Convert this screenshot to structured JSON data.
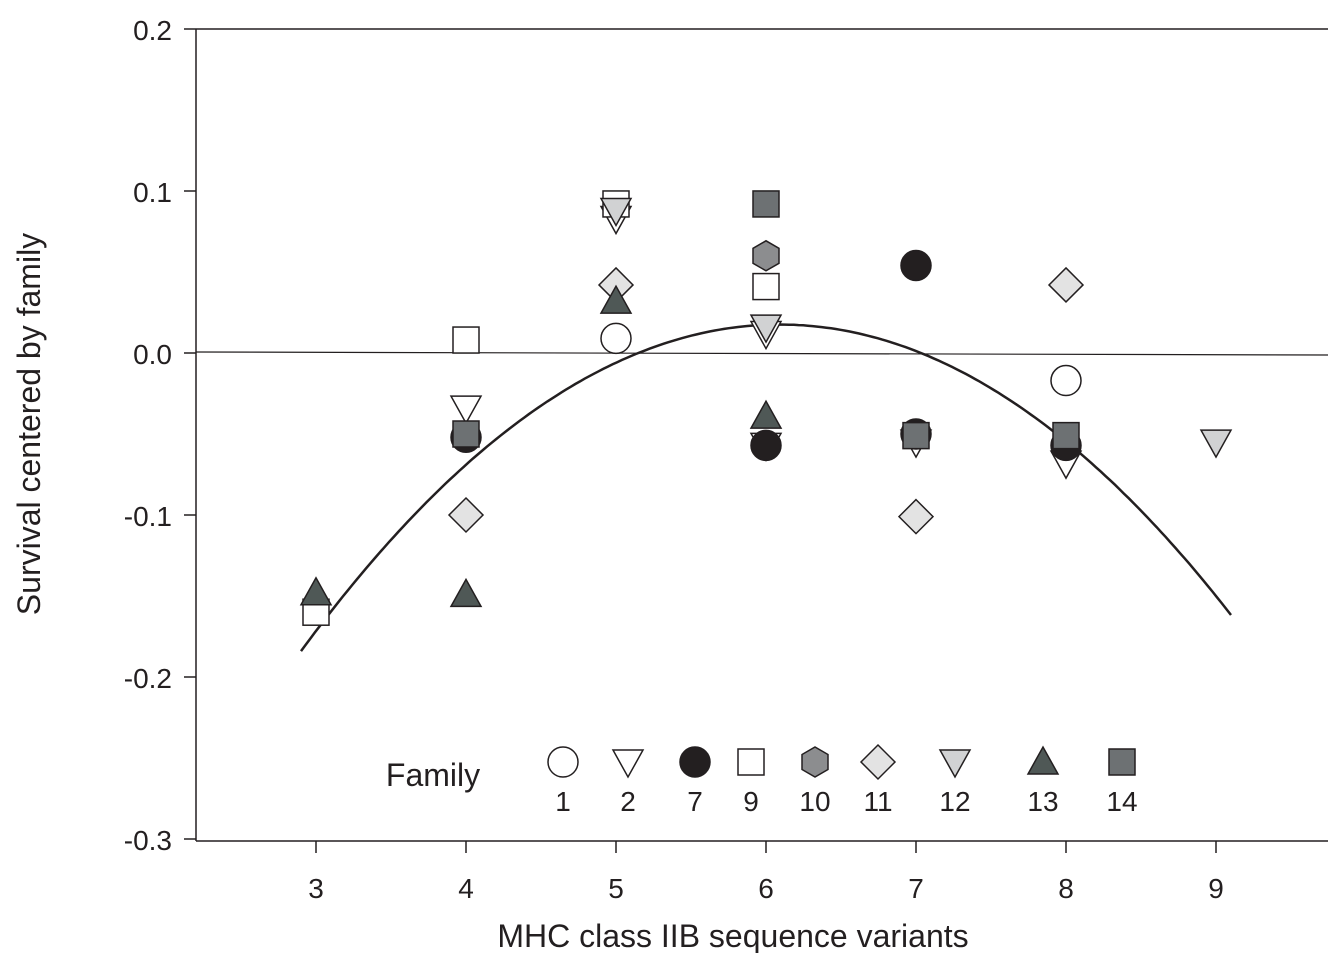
{
  "chart_data": {
    "type": "scatter",
    "title": "",
    "xlabel": "MHC class IIB sequence variants",
    "ylabel": "Survival centered by family",
    "xlim": [
      2.2,
      9.75
    ],
    "ylim": [
      -0.3,
      0.2
    ],
    "x_ticks": [
      3,
      4,
      5,
      6,
      7,
      8,
      9
    ],
    "y_ticks": [
      0.2,
      0.1,
      0.0,
      -0.1,
      -0.2,
      -0.3
    ],
    "y_tick_labels": [
      "0.2",
      "0.1",
      "0.0",
      "-0.1",
      "-0.2",
      "-0.3"
    ],
    "reference_line_y": 0.0,
    "grid": false,
    "legend": {
      "title": "Family",
      "placement": "bottom-center"
    },
    "series": [
      {
        "name": "1",
        "marker": "circle",
        "fill": "#ffffff",
        "points": [
          [
            5,
            0.009
          ],
          [
            8,
            -0.017
          ]
        ]
      },
      {
        "name": "2",
        "marker": "triangle-down",
        "fill": "#ffffff",
        "points": [
          [
            4,
            -0.034
          ],
          [
            5,
            0.083
          ],
          [
            6,
            0.012
          ],
          [
            6,
            -0.057
          ],
          [
            7,
            -0.055
          ],
          [
            8,
            -0.068
          ]
        ]
      },
      {
        "name": "7",
        "marker": "circle",
        "fill": "#231f20",
        "points": [
          [
            4,
            -0.052
          ],
          [
            6,
            -0.057
          ],
          [
            7,
            0.054
          ],
          [
            7,
            -0.05
          ],
          [
            8,
            -0.057
          ]
        ]
      },
      {
        "name": "9",
        "marker": "square",
        "fill": "#ffffff",
        "points": [
          [
            3,
            -0.16
          ],
          [
            4,
            0.008
          ],
          [
            5,
            0.092
          ],
          [
            6,
            0.041
          ]
        ]
      },
      {
        "name": "10",
        "marker": "hexagon",
        "fill": "#8c8d8f",
        "points": [
          [
            6,
            0.06
          ]
        ]
      },
      {
        "name": "11",
        "marker": "diamond",
        "fill": "#e3e3e3",
        "points": [
          [
            4,
            -0.1
          ],
          [
            5,
            0.042
          ],
          [
            7,
            -0.101
          ],
          [
            8,
            0.042
          ]
        ]
      },
      {
        "name": "12",
        "marker": "triangle-down",
        "fill": "#d1d2d3",
        "points": [
          [
            5,
            0.088
          ],
          [
            6,
            0.016
          ],
          [
            9,
            -0.055
          ]
        ]
      },
      {
        "name": "13",
        "marker": "triangle-up",
        "fill": "#4f5856",
        "points": [
          [
            3,
            -0.148
          ],
          [
            4,
            -0.149
          ],
          [
            5,
            0.032
          ],
          [
            6,
            -0.039
          ]
        ]
      },
      {
        "name": "14",
        "marker": "square",
        "fill": "#6d7173",
        "points": [
          [
            4,
            -0.05
          ],
          [
            6,
            0.092
          ],
          [
            7,
            -0.051
          ],
          [
            8,
            -0.051
          ]
        ]
      }
    ],
    "fit_curve": {
      "type": "quadratic",
      "coefficients": [
        -0.0198,
        0.2412,
        -0.717
      ],
      "x_range": [
        2.9,
        9.1
      ]
    }
  }
}
